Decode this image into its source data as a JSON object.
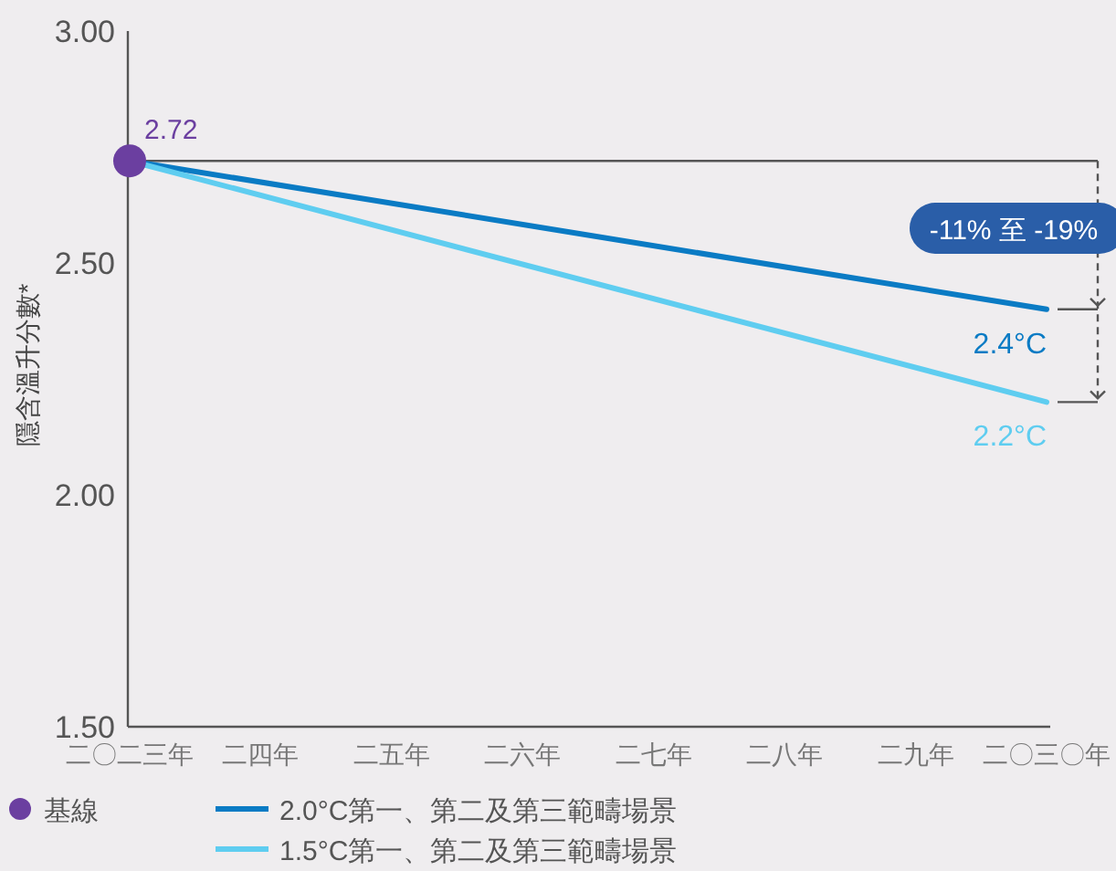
{
  "chart_data": {
    "type": "line",
    "ylabel": "隱含溫升分數*",
    "categories": [
      "二〇二三年",
      "二四年",
      "二五年",
      "二六年",
      "二七年",
      "二八年",
      "二九年",
      "二〇三〇年"
    ],
    "ylim": [
      1.5,
      3
    ],
    "yticks": [
      {
        "value": 1.5,
        "label": "1.50"
      },
      {
        "value": 2,
        "label": "2.00"
      },
      {
        "value": 2.5,
        "label": "2.50"
      },
      {
        "value": 3,
        "label": "3.00"
      }
    ],
    "series": [
      {
        "name": "基線",
        "type": "scatter",
        "color": "#6b3fa0",
        "x": [
          "二〇二三年"
        ],
        "values": [
          2.72
        ],
        "value_labels": [
          "2.72"
        ]
      },
      {
        "name": "2.0°C第一、第二及第三範疇場景",
        "color": "#0a7bc4",
        "x": [
          "二〇二三年",
          "二〇三〇年"
        ],
        "values": [
          2.72,
          2.4
        ],
        "value_labels": [
          null,
          "2.4°C"
        ]
      },
      {
        "name": "1.5°C第一、第二及第三範疇場景",
        "color": "#5fcdf0",
        "x": [
          "二〇二三年",
          "二〇三〇年"
        ],
        "values": [
          2.72,
          2.2
        ],
        "value_labels": [
          null,
          "2.2°C"
        ]
      }
    ],
    "ref_lines": [
      {
        "axis": "y",
        "value": 2.72,
        "color": "#555555"
      }
    ],
    "annotations": [
      "-11% 至 -19%"
    ],
    "legend": "bottom",
    "grid": false
  }
}
